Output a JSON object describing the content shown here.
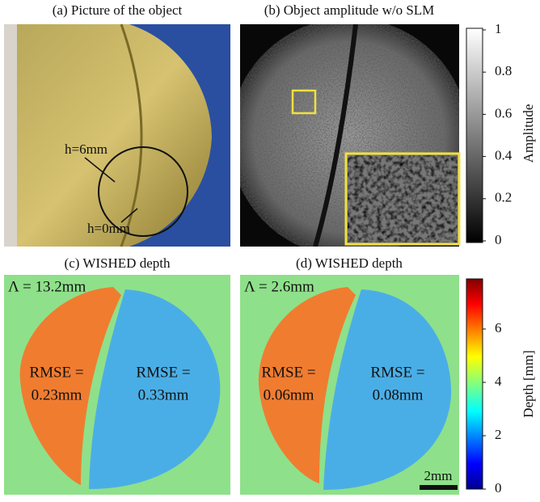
{
  "panels": [
    {
      "title": "(a) Picture of the object",
      "annotations": [
        "h=6mm",
        "h=0mm"
      ]
    },
    {
      "title": "(b) Object amplitude w/o SLM"
    },
    {
      "title": "(c) WISHED depth",
      "lambda": "Λ = 13.2mm",
      "rmse": [
        [
          "RMSE =",
          "0.23mm"
        ],
        [
          "RMSE =",
          "0.33mm"
        ]
      ]
    },
    {
      "title": "(d) WISHED depth",
      "lambda": "Λ = 2.6mm",
      "rmse": [
        [
          "RMSE =",
          "0.06mm"
        ],
        [
          "RMSE =",
          "0.08mm"
        ]
      ]
    }
  ],
  "colorbars": [
    {
      "label": "Amplitude",
      "ticks": [
        "1",
        "0.8",
        "0.6",
        "0.4",
        "0.2",
        "0"
      ]
    },
    {
      "label": "Depth [mm]",
      "ticks": [
        "0",
        "2",
        "4",
        "6"
      ]
    }
  ],
  "scale_bar": "2mm"
}
